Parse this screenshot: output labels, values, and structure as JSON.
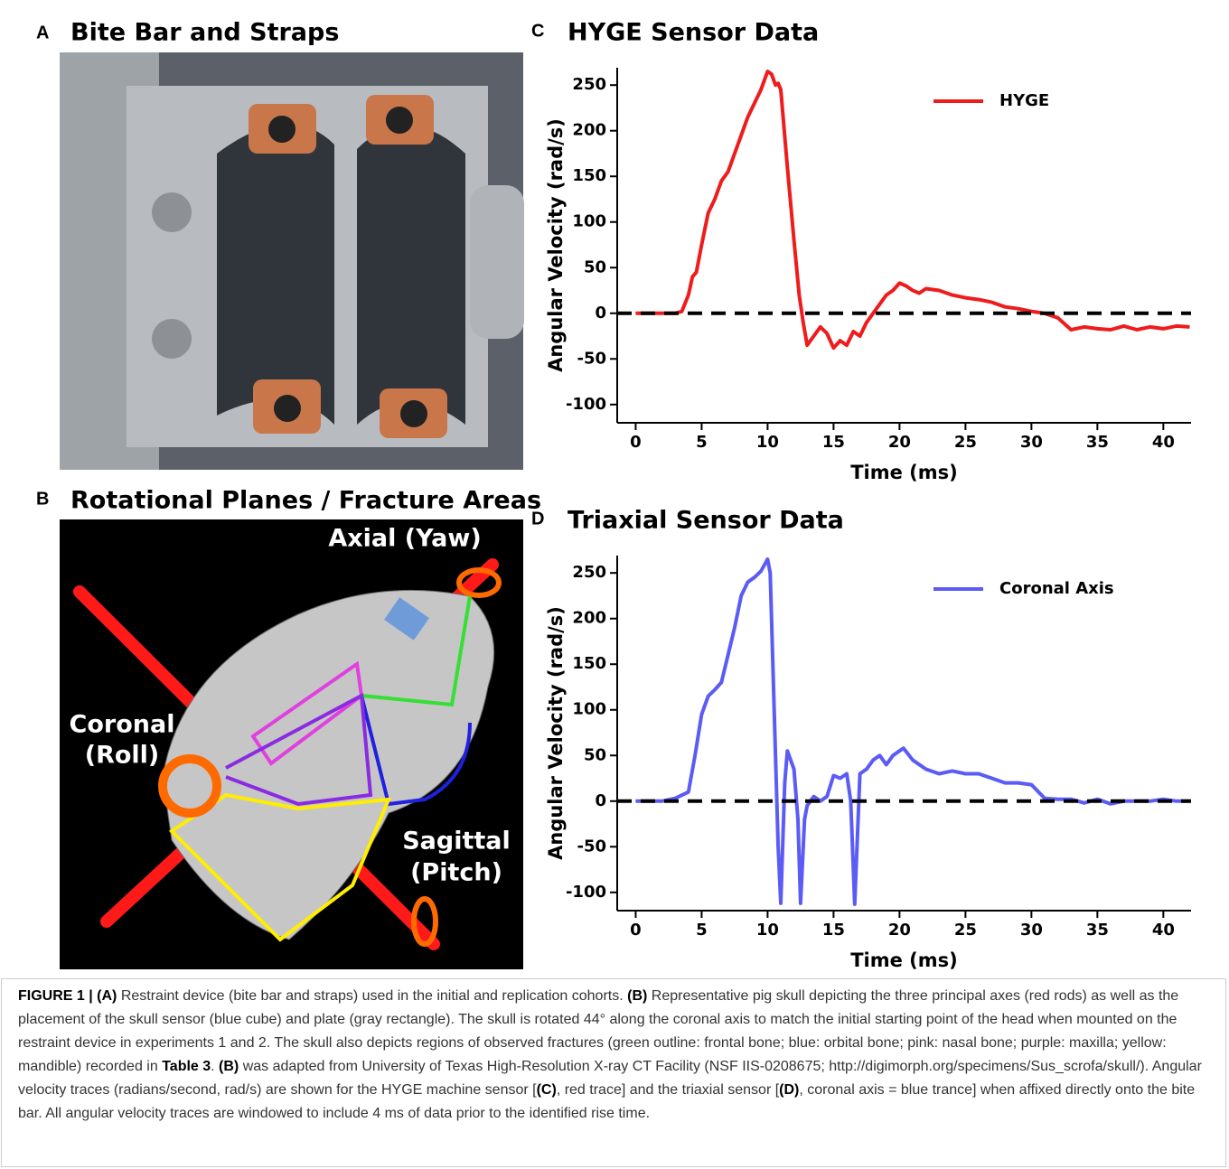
{
  "panels": [
    {
      "letter": "A",
      "title": "Bite Bar and Straps"
    },
    {
      "letter": "B",
      "title": "Rotational Planes / Fracture Areas",
      "labels": [
        [
          "Axial (Yaw)"
        ],
        [
          "Coronal",
          "(Roll)"
        ],
        [
          "Sagittal",
          "(Pitch)"
        ]
      ]
    }
  ],
  "chart_data": [
    {
      "type": "line",
      "letter": "C",
      "title": "HYGE Sensor Data",
      "x_label": "Time (ms)",
      "y_label": "Angular Velocity (rad/s)",
      "xlim": [
        -1.4,
        42.1
      ],
      "ylim": [
        -120,
        269
      ],
      "xticks": [
        0,
        5,
        10,
        15,
        20,
        25,
        30,
        35,
        40
      ],
      "yticks": [
        -100,
        -50,
        0,
        50,
        100,
        150,
        200,
        250
      ],
      "reference_line": {
        "y": 0,
        "color": "#000000"
      },
      "legend": "upper right",
      "series": [
        {
          "name": "HYGE",
          "color": "#ee1c1c",
          "x": [
            0,
            1,
            2,
            3,
            3.5,
            4,
            4.3,
            4.6,
            5,
            5.5,
            6,
            6.5,
            7,
            7.5,
            8,
            8.5,
            9,
            9.5,
            10,
            10.3,
            10.6,
            10.8,
            11,
            11.5,
            12,
            12.4,
            12.7,
            13,
            13.5,
            14,
            14.5,
            15,
            15.5,
            16,
            16.5,
            17,
            17.5,
            18,
            18.5,
            19,
            19.5,
            20,
            20.5,
            21,
            21.5,
            22,
            23,
            24,
            25,
            26,
            27,
            28,
            29,
            30,
            31,
            32,
            33,
            34,
            35,
            36,
            37,
            38,
            39,
            40,
            41,
            42
          ],
          "values": [
            0,
            0,
            0,
            0,
            2,
            20,
            40,
            45,
            75,
            110,
            125,
            145,
            155,
            175,
            195,
            215,
            230,
            245,
            265,
            262,
            250,
            252,
            245,
            160,
            80,
            20,
            -10,
            -35,
            -25,
            -15,
            -22,
            -38,
            -30,
            -35,
            -20,
            -25,
            -10,
            0,
            10,
            20,
            25,
            33,
            30,
            25,
            22,
            27,
            25,
            20,
            17,
            15,
            12,
            7,
            5,
            2,
            0,
            -5,
            -18,
            -15,
            -17,
            -18,
            -14,
            -18,
            -15,
            -17,
            -14,
            -15
          ]
        }
      ]
    },
    {
      "type": "line",
      "letter": "D",
      "title": "Triaxial Sensor Data",
      "x_label": "Time (ms)",
      "y_label": "Angular Velocity (rad/s)",
      "xlim": [
        -1.4,
        42.1
      ],
      "ylim": [
        -120,
        269
      ],
      "xticks": [
        0,
        5,
        10,
        15,
        20,
        25,
        30,
        35,
        40
      ],
      "yticks": [
        -100,
        -50,
        0,
        50,
        100,
        150,
        200,
        250
      ],
      "reference_line": {
        "y": 0,
        "color": "#000000"
      },
      "legend": "upper right",
      "series": [
        {
          "name": "Coronal Axis",
          "color": "#5b5bf5",
          "x": [
            0,
            1,
            2,
            3,
            4,
            4.5,
            5,
            5.5,
            6,
            6.5,
            7,
            7.5,
            8,
            8.5,
            9,
            9.5,
            10,
            10.2,
            10.5,
            10.8,
            11,
            11.3,
            11.5,
            12,
            12.3,
            12.5,
            12.8,
            13,
            13.5,
            14,
            14.5,
            15,
            15.5,
            16,
            16.3,
            16.6,
            17,
            17.5,
            18,
            18.5,
            19,
            19.5,
            20,
            20.3,
            21,
            22,
            23,
            24,
            25,
            26,
            27,
            28,
            29,
            30,
            31,
            32,
            33,
            34,
            35,
            36,
            37,
            38,
            39,
            40,
            41,
            42
          ],
          "values": [
            0,
            0,
            0,
            3,
            10,
            50,
            95,
            115,
            122,
            130,
            160,
            190,
            225,
            240,
            245,
            252,
            265,
            250,
            100,
            -50,
            -112,
            20,
            55,
            35,
            -20,
            -112,
            -20,
            -5,
            5,
            0,
            5,
            28,
            25,
            30,
            0,
            -113,
            30,
            35,
            45,
            50,
            40,
            50,
            55,
            58,
            45,
            35,
            30,
            33,
            30,
            30,
            25,
            20,
            20,
            18,
            3,
            2,
            2,
            -2,
            2,
            -3,
            0,
            0,
            0,
            2,
            0,
            0
          ]
        }
      ]
    }
  ],
  "caption": [
    {
      "text": "FIGURE 1 | (A)",
      "bold": true
    },
    {
      "text": " Restraint device (bite bar and straps) used in the initial and replication cohorts. ",
      "bold": false
    },
    {
      "text": "(B)",
      "bold": true
    },
    {
      "text": " Representative pig skull depicting the three principal axes (red rods) as well as the placement of the skull sensor (blue cube) and plate (gray rectangle). The skull is rotated 44° along the coronal axis to match the initial starting point of the head when mounted on the restraint device in experiments 1 and 2. The skull also depicts regions of observed fractures (green outline: frontal bone; blue: orbital bone; pink: nasal bone; purple: maxilla; yellow: mandible) recorded in ",
      "bold": false
    },
    {
      "text": "Table 3",
      "bold": true
    },
    {
      "text": ". ",
      "bold": false
    },
    {
      "text": "(B)",
      "bold": true
    },
    {
      "text": " was adapted from University of Texas High-Resolution X-ray CT Facility (NSF IIS-0208675; http://digimorph.org/specimens/Sus_scrofa/skull/). Angular velocity traces (radians/second, rad/s) are shown for the HYGE machine sensor [",
      "bold": false
    },
    {
      "text": "(C)",
      "bold": true
    },
    {
      "text": ", red trace] and the triaxial sensor [",
      "bold": false
    },
    {
      "text": "(D)",
      "bold": true
    },
    {
      "text": ", coronal axis = blue trance] when affixed directly onto the bite bar. All angular velocity traces are windowed to include 4 ms of data prior to the identified rise time.",
      "bold": false
    }
  ]
}
